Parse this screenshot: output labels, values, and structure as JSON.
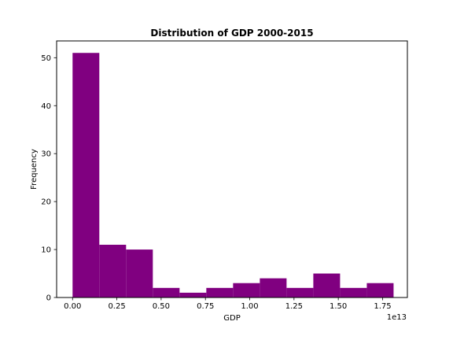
{
  "chart_data": {
    "type": "bar",
    "subtype": "histogram",
    "title": "Distribution of GDP 2000-2015",
    "xlabel": "GDP",
    "ylabel": "Frequency",
    "x_offset_label": "1e13",
    "x_scale": 10000000000000.0,
    "bin_width": 1510000000000.0,
    "bin_start": 0,
    "values": [
      51,
      11,
      10,
      2,
      1,
      2,
      3,
      4,
      2,
      5,
      2,
      3
    ],
    "xlim": [
      -900000000000.0,
      18900000000000.0
    ],
    "ylim": [
      0,
      53.5
    ],
    "xticks": [
      0,
      2500000000000.0,
      5000000000000.0,
      7500000000000.0,
      10000000000000.0,
      12500000000000.0,
      15000000000000.0,
      17500000000000.0
    ],
    "xtick_labels": [
      "0.00",
      "0.25",
      "0.50",
      "0.75",
      "1.00",
      "1.25",
      "1.50",
      "1.75"
    ],
    "yticks": [
      0,
      10,
      20,
      30,
      40,
      50
    ],
    "ytick_labels": [
      "0",
      "10",
      "20",
      "30",
      "40",
      "50"
    ],
    "bar_color": "#800080",
    "grid": false
  }
}
